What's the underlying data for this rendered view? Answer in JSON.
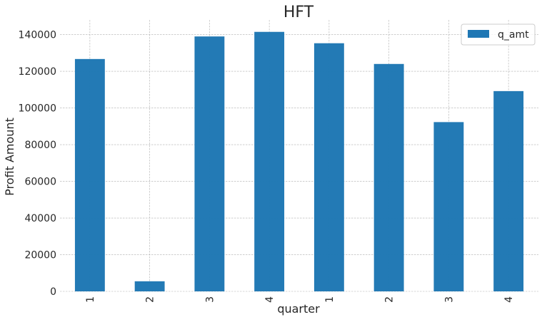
{
  "chart_data": {
    "type": "bar",
    "title": "HFT",
    "xlabel": "quarter",
    "ylabel": "Profit Amount",
    "categories": [
      "1",
      "2",
      "3",
      "4",
      "1",
      "2",
      "3",
      "4"
    ],
    "series": [
      {
        "name": "q_amt",
        "color": "#1f77b4",
        "values": [
          126700,
          5500,
          139000,
          141500,
          135300,
          124000,
          92300,
          109200
        ]
      }
    ],
    "ylim": [
      0,
      148000
    ],
    "yticks": [
      0,
      20000,
      40000,
      60000,
      80000,
      100000,
      120000,
      140000
    ],
    "ytick_labels": [
      "0",
      "20000",
      "40000",
      "60000",
      "80000",
      "100000",
      "120000",
      "140000"
    ],
    "grid": true,
    "legend_position": "top-right"
  }
}
